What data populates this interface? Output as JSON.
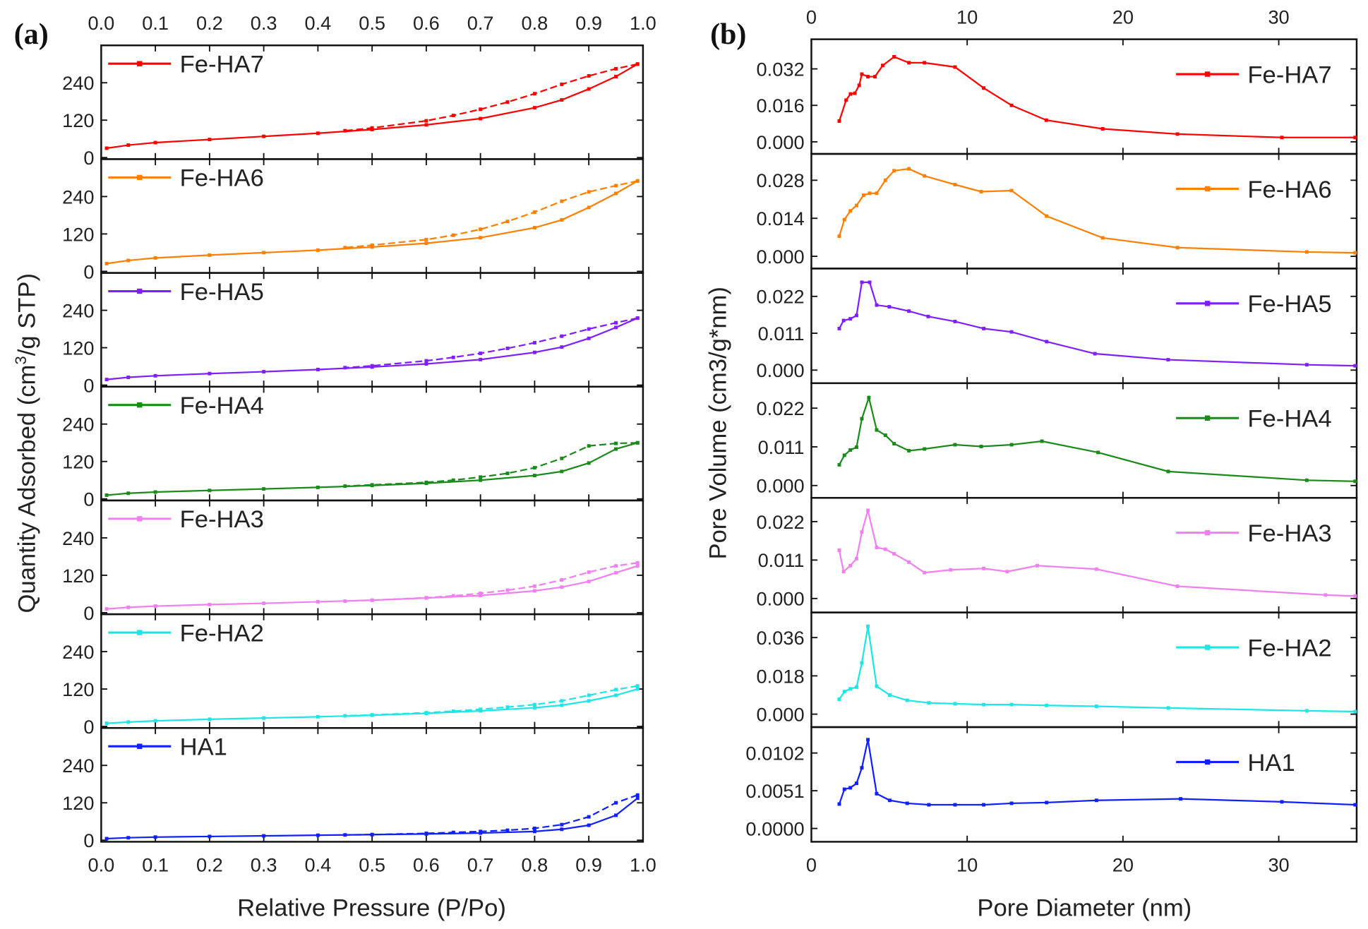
{
  "chart_data": [
    {
      "type": "line",
      "panel_label": "(a)",
      "xlabel": "Relative Pressure (P/Po)",
      "ylabel_parts": [
        "Quantity Adsorbed (cm",
        "3",
        "/g STP)"
      ],
      "xlim": [
        0,
        1.0
      ],
      "xticks": [
        "0.0",
        "0.1",
        "0.2",
        "0.3",
        "0.4",
        "0.5",
        "0.6",
        "0.7",
        "0.8",
        "0.9",
        "1.0"
      ],
      "ylim": [
        -5,
        360
      ],
      "yticks": [
        "0",
        "120",
        "240"
      ],
      "legend_placement": "top-left",
      "x_ads": [
        0.01,
        0.05,
        0.1,
        0.2,
        0.3,
        0.4,
        0.5,
        0.6,
        0.7,
        0.8,
        0.85,
        0.9,
        0.95,
        0.99
      ],
      "x_des": [
        0.99,
        0.95,
        0.9,
        0.85,
        0.8,
        0.75,
        0.7,
        0.65,
        0.6,
        0.5,
        0.45
      ],
      "series": [
        {
          "name": "Fe-HA7",
          "color": "#ff0000",
          "adsorption": [
            30,
            40,
            48,
            58,
            68,
            78,
            90,
            105,
            125,
            160,
            185,
            220,
            260,
            300
          ],
          "desorption": [
            300,
            285,
            262,
            235,
            205,
            178,
            155,
            135,
            118,
            95,
            86
          ]
        },
        {
          "name": "Fe-HA6",
          "color": "#ff7f00",
          "adsorption": [
            25,
            35,
            43,
            52,
            60,
            68,
            78,
            90,
            108,
            140,
            165,
            205,
            250,
            290
          ],
          "desorption": [
            290,
            275,
            255,
            225,
            190,
            160,
            135,
            116,
            102,
            84,
            76
          ]
        },
        {
          "name": "Fe-HA5",
          "color": "#7f1fff",
          "adsorption": [
            18,
            25,
            30,
            37,
            43,
            50,
            58,
            68,
            82,
            105,
            122,
            150,
            185,
            215
          ],
          "desorption": [
            215,
            200,
            180,
            157,
            136,
            118,
            102,
            89,
            78,
            62,
            56
          ]
        },
        {
          "name": "Fe-HA4",
          "color": "#1a8a1a",
          "adsorption": [
            12,
            18,
            22,
            27,
            32,
            37,
            43,
            50,
            60,
            75,
            88,
            115,
            160,
            180
          ],
          "desorption": [
            180,
            178,
            170,
            130,
            100,
            82,
            70,
            60,
            53,
            45,
            41
          ]
        },
        {
          "name": "Fe-HA3",
          "color": "#f080f0",
          "adsorption": [
            12,
            17,
            21,
            26,
            30,
            35,
            40,
            47,
            55,
            70,
            82,
            100,
            128,
            150
          ],
          "desorption": [
            160,
            150,
            130,
            105,
            85,
            72,
            62,
            54,
            48,
            40,
            37
          ]
        },
        {
          "name": "Fe-HA2",
          "color": "#1ee6e6",
          "adsorption": [
            10,
            14,
            18,
            23,
            27,
            31,
            36,
            42,
            50,
            60,
            68,
            82,
            100,
            120
          ],
          "desorption": [
            130,
            118,
            100,
            82,
            70,
            62,
            55,
            49,
            44,
            37,
            34
          ]
        },
        {
          "name": "HA1",
          "color": "#1020ff",
          "adsorption": [
            5,
            8,
            10,
            12,
            14,
            16,
            18,
            20,
            23,
            28,
            35,
            48,
            80,
            135
          ],
          "desorption": [
            145,
            120,
            75,
            50,
            38,
            32,
            28,
            25,
            22,
            18,
            17
          ]
        }
      ]
    },
    {
      "type": "line",
      "panel_label": "(b)",
      "xlabel": "Pore Diameter (nm)",
      "ylabel": "Pore Volume (cm3/g*nm)",
      "xlim": [
        0,
        35
      ],
      "xticks": [
        "0",
        "10",
        "20",
        "30"
      ],
      "legend_placement": "top-right",
      "series": [
        {
          "name": "Fe-HA7",
          "color": "#ff0000",
          "ylim": [
            -0.0053,
            0.045
          ],
          "yticks": [
            "0.000",
            "0.016",
            "0.032"
          ],
          "x": [
            1.79,
            2.23,
            2.51,
            2.79,
            3.07,
            3.24,
            3.63,
            4.08,
            4.58,
            5.31,
            6.26,
            7.26,
            9.22,
            11.06,
            12.85,
            15.08,
            18.7,
            23.5,
            30.2,
            34.9
          ],
          "y": [
            0.0091,
            0.0183,
            0.021,
            0.0213,
            0.0248,
            0.0297,
            0.0286,
            0.0286,
            0.0335,
            0.0373,
            0.0347,
            0.0347,
            0.0328,
            0.0236,
            0.016,
            0.0095,
            0.0057,
            0.0034,
            0.0019,
            0.0019
          ]
        },
        {
          "name": "Fe-HA6",
          "color": "#ff7f00",
          "ylim": [
            -0.0045,
            0.0377
          ],
          "yticks": [
            "0.000",
            "0.014",
            "0.028"
          ],
          "x": [
            1.79,
            2.12,
            2.5,
            2.9,
            3.35,
            3.74,
            4.19,
            4.75,
            5.31,
            6.26,
            7.26,
            9.22,
            10.9,
            12.85,
            15.1,
            18.7,
            23.5,
            31.8,
            34.9
          ],
          "y": [
            0.0074,
            0.0135,
            0.0167,
            0.0187,
            0.0225,
            0.0232,
            0.0232,
            0.028,
            0.0315,
            0.0322,
            0.0296,
            0.0264,
            0.0238,
            0.0242,
            0.0148,
            0.0068,
            0.0032,
            0.0016,
            0.0013
          ]
        },
        {
          "name": "Fe-HA5",
          "color": "#7f1fff",
          "ylim": [
            -0.0039,
            0.0303
          ],
          "yticks": [
            "0.000",
            "0.011",
            "0.022"
          ],
          "x": [
            1.79,
            2.07,
            2.5,
            2.9,
            3.24,
            3.74,
            4.19,
            5.0,
            6.26,
            7.5,
            9.22,
            11.06,
            12.85,
            15.1,
            18.2,
            22.9,
            31.8,
            34.9
          ],
          "y": [
            0.0124,
            0.0148,
            0.0153,
            0.0163,
            0.0262,
            0.0262,
            0.0194,
            0.0189,
            0.0176,
            0.016,
            0.0145,
            0.0124,
            0.0114,
            0.0085,
            0.0049,
            0.0031,
            0.0016,
            0.0013
          ]
        },
        {
          "name": "Fe-HA4",
          "color": "#1a8a1a",
          "ylim": [
            -0.0035,
            0.0291
          ],
          "yticks": [
            "0.000",
            "0.011",
            "0.022"
          ],
          "x": [
            1.79,
            2.12,
            2.5,
            2.9,
            3.24,
            3.69,
            4.19,
            4.75,
            5.31,
            6.26,
            7.26,
            9.22,
            10.9,
            12.85,
            14.8,
            18.4,
            22.9,
            31.8,
            34.9
          ],
          "y": [
            0.0059,
            0.0086,
            0.0101,
            0.0109,
            0.019,
            0.025,
            0.0158,
            0.0143,
            0.0119,
            0.0099,
            0.0104,
            0.0116,
            0.0111,
            0.0116,
            0.0126,
            0.0094,
            0.004,
            0.0015,
            0.0012
          ]
        },
        {
          "name": "Fe-HA3",
          "color": "#f080f0",
          "ylim": [
            -0.004,
            0.0288
          ],
          "yticks": [
            "0.000",
            "0.011",
            "0.022"
          ],
          "x": [
            1.79,
            2.07,
            2.5,
            2.9,
            3.24,
            3.63,
            4.19,
            4.75,
            5.31,
            6.26,
            7.26,
            8.94,
            11.06,
            12.57,
            14.5,
            18.3,
            23.5,
            33.0,
            34.9
          ],
          "y": [
            0.0138,
            0.0077,
            0.0094,
            0.0114,
            0.019,
            0.0252,
            0.0146,
            0.0141,
            0.0128,
            0.0104,
            0.0074,
            0.0082,
            0.0086,
            0.0077,
            0.0094,
            0.0084,
            0.0035,
            0.001,
            0.0007
          ]
        },
        {
          "name": "Fe-HA2",
          "color": "#1ee6e6",
          "ylim": [
            -0.0061,
            0.0478
          ],
          "yticks": [
            "0.000",
            "0.018",
            "0.036"
          ],
          "x": [
            1.79,
            2.12,
            2.5,
            2.9,
            3.24,
            3.63,
            4.19,
            5.03,
            6.15,
            7.54,
            9.22,
            11.06,
            12.85,
            15.1,
            18.3,
            22.9,
            31.8,
            34.9
          ],
          "y": [
            0.007,
            0.0106,
            0.0119,
            0.0127,
            0.0241,
            0.0413,
            0.0131,
            0.009,
            0.0065,
            0.0053,
            0.0049,
            0.0045,
            0.0045,
            0.0041,
            0.0037,
            0.0029,
            0.0016,
            0.0012
          ]
        },
        {
          "name": "HA1",
          "color": "#1020ff",
          "ylim": [
            -0.0018,
            0.0137
          ],
          "yticks": [
            "0.0000",
            "0.0051",
            "0.0102"
          ],
          "x": [
            1.79,
            2.12,
            2.5,
            2.9,
            3.24,
            3.63,
            4.19,
            5.03,
            6.15,
            7.54,
            9.22,
            11.06,
            12.85,
            15.1,
            18.3,
            23.7,
            30.2,
            34.9
          ],
          "y": [
            0.0033,
            0.0053,
            0.0055,
            0.0061,
            0.0082,
            0.012,
            0.0047,
            0.0038,
            0.0034,
            0.0032,
            0.0032,
            0.0032,
            0.0034,
            0.0035,
            0.0038,
            0.004,
            0.0036,
            0.0032
          ]
        }
      ]
    }
  ]
}
